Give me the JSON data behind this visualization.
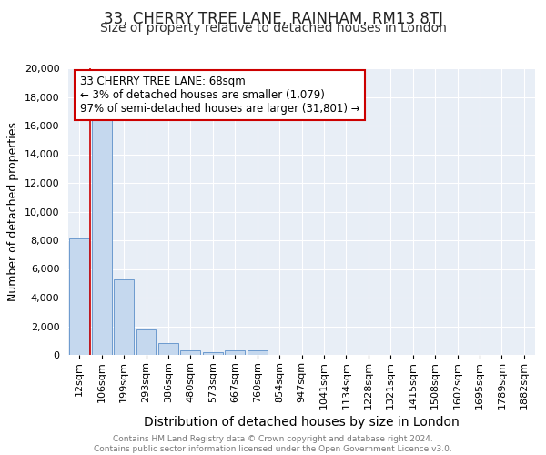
{
  "title": "33, CHERRY TREE LANE, RAINHAM, RM13 8TJ",
  "subtitle": "Size of property relative to detached houses in London",
  "xlabel": "Distribution of detached houses by size in London",
  "ylabel": "Number of detached properties",
  "footnote1": "Contains HM Land Registry data © Crown copyright and database right 2024.",
  "footnote2": "Contains public sector information licensed under the Open Government Licence v3.0.",
  "annotation_title": "33 CHERRY TREE LANE: 68sqm",
  "annotation_line1": "← 3% of detached houses are smaller (1,079)",
  "annotation_line2": "97% of semi-detached houses are larger (31,801) →",
  "bar_color": "#c5d8ee",
  "bar_edge_color": "#5b8fc9",
  "marker_color": "#cc0000",
  "categories": [
    "12sqm",
    "106sqm",
    "199sqm",
    "293sqm",
    "386sqm",
    "480sqm",
    "573sqm",
    "667sqm",
    "760sqm",
    "854sqm",
    "947sqm",
    "1041sqm",
    "1134sqm",
    "1228sqm",
    "1321sqm",
    "1415sqm",
    "1508sqm",
    "1602sqm",
    "1695sqm",
    "1789sqm",
    "1882sqm"
  ],
  "values": [
    8100,
    16500,
    5300,
    1750,
    800,
    290,
    195,
    290,
    290,
    0,
    0,
    0,
    0,
    0,
    0,
    0,
    0,
    0,
    0,
    0,
    0
  ],
  "ylim": [
    0,
    20000
  ],
  "yticks": [
    0,
    2000,
    4000,
    6000,
    8000,
    10000,
    12000,
    14000,
    16000,
    18000,
    20000
  ],
  "background_color": "#ffffff",
  "plot_bg_color": "#e8eef6",
  "grid_color": "#ffffff",
  "title_fontsize": 12,
  "subtitle_fontsize": 10,
  "xlabel_fontsize": 10,
  "ylabel_fontsize": 9,
  "tick_fontsize": 8,
  "footnote_fontsize": 6.5,
  "annotation_fontsize": 8.5
}
